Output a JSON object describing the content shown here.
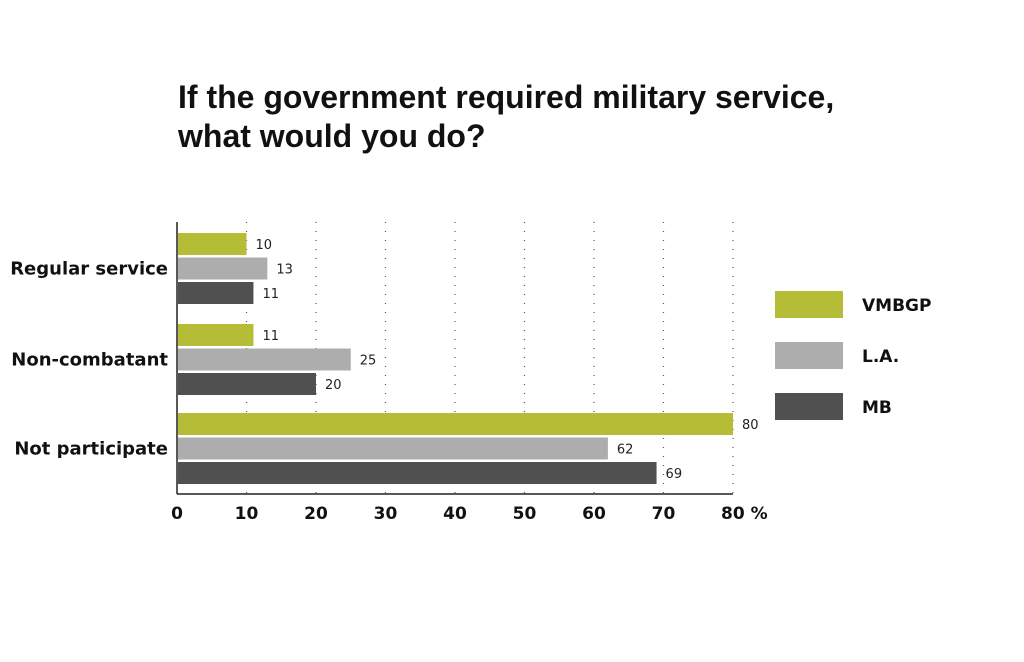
{
  "chart_data": {
    "type": "bar",
    "orientation": "horizontal",
    "title": [
      "If the government required military service,",
      "what would you do?"
    ],
    "categories": [
      "Regular service",
      "Non-combatant",
      "Not participate"
    ],
    "series": [
      {
        "name": "VMBGP",
        "values": [
          10,
          11,
          80
        ],
        "color": "#b5bc35"
      },
      {
        "name": "L.A.",
        "values": [
          13,
          25,
          62
        ],
        "color": "#adadad"
      },
      {
        "name": "MB",
        "values": [
          11,
          20,
          69
        ],
        "color": "#505050"
      }
    ],
    "x_ticks": [
      "0",
      "10",
      "20",
      "30",
      "40",
      "50",
      "60",
      "70",
      "80 %"
    ],
    "xlim": [
      0,
      80
    ],
    "grid": "vertical dotted",
    "legend_position": "right"
  }
}
